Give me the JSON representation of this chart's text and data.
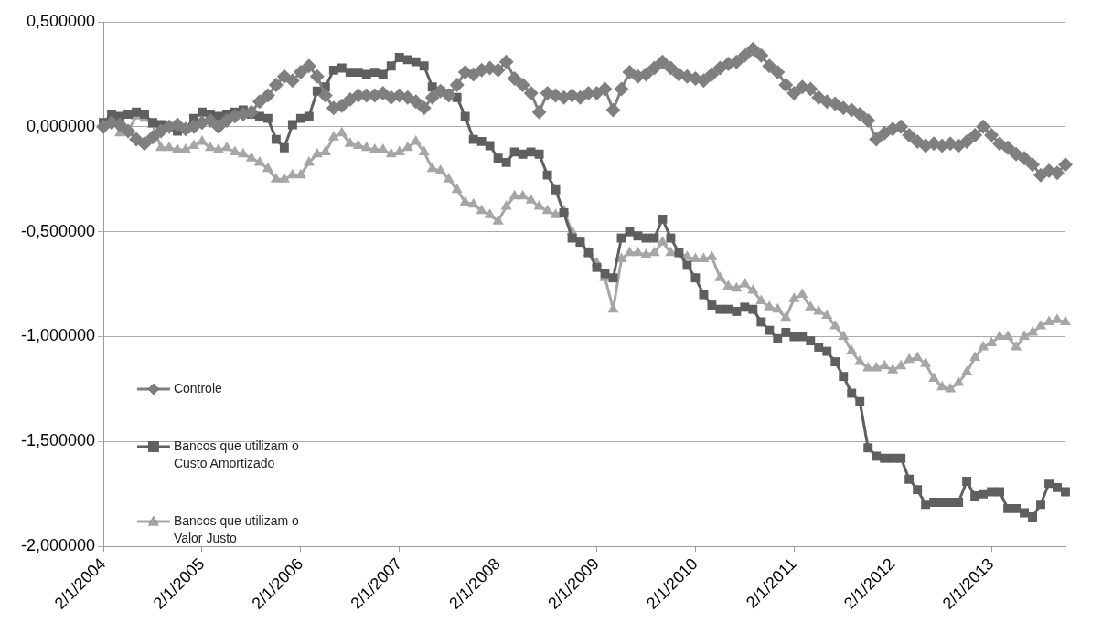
{
  "chart_data": {
    "type": "line",
    "categories": [
      "2/1/2004",
      null,
      null,
      null,
      null,
      null,
      null,
      null,
      null,
      null,
      null,
      null,
      "2/1/2005",
      null,
      null,
      null,
      null,
      null,
      null,
      null,
      null,
      null,
      null,
      null,
      "2/1/2006",
      null,
      null,
      null,
      null,
      null,
      null,
      null,
      null,
      null,
      null,
      null,
      "2/1/2007",
      null,
      null,
      null,
      null,
      null,
      null,
      null,
      null,
      null,
      null,
      null,
      "2/1/2008",
      null,
      null,
      null,
      null,
      null,
      null,
      null,
      null,
      null,
      null,
      null,
      "2/1/2009",
      null,
      null,
      null,
      null,
      null,
      null,
      null,
      null,
      null,
      null,
      null,
      "2/1/2010",
      null,
      null,
      null,
      null,
      null,
      null,
      null,
      null,
      null,
      null,
      null,
      "2/1/2011",
      null,
      null,
      null,
      null,
      null,
      null,
      null,
      null,
      null,
      null,
      null,
      "2/1/2012",
      null,
      null,
      null,
      null,
      null,
      null,
      null,
      null,
      null,
      null,
      null,
      "2/1/2013",
      null,
      null,
      null,
      null,
      null,
      null,
      null,
      null,
      null
    ],
    "series": [
      {
        "name": "Controle",
        "color": "#7f7f7f",
        "marker": "diamond",
        "values": [
          0,
          0.02,
          0.01,
          -0.02,
          -0.06,
          -0.08,
          -0.05,
          -0.02,
          0.0,
          0.01,
          -0.01,
          0.0,
          0.02,
          0.03,
          0.0,
          0.03,
          0.05,
          0.06,
          0.07,
          0.12,
          0.15,
          0.2,
          0.24,
          0.22,
          0.26,
          0.29,
          0.24,
          0.15,
          0.09,
          0.1,
          0.13,
          0.15,
          0.15,
          0.15,
          0.16,
          0.14,
          0.15,
          0.14,
          0.12,
          0.09,
          0.14,
          0.17,
          0.15,
          0.2,
          0.26,
          0.25,
          0.27,
          0.28,
          0.27,
          0.31,
          0.23,
          0.2,
          0.16,
          0.07,
          0.16,
          0.15,
          0.14,
          0.15,
          0.14,
          0.16,
          0.16,
          0.18,
          0.08,
          0.18,
          0.26,
          0.24,
          0.25,
          0.28,
          0.31,
          0.28,
          0.25,
          0.24,
          0.23,
          0.22,
          0.25,
          0.28,
          0.3,
          0.31,
          0.34,
          0.37,
          0.34,
          0.29,
          0.26,
          0.2,
          0.16,
          0.19,
          0.18,
          0.14,
          0.12,
          0.11,
          0.09,
          0.08,
          0.06,
          0.03,
          -0.06,
          -0.03,
          -0.01,
          0.0,
          -0.04,
          -0.07,
          -0.09,
          -0.08,
          -0.09,
          -0.08,
          -0.09,
          -0.07,
          -0.04,
          0.0,
          -0.04,
          -0.08,
          -0.1,
          -0.13,
          -0.15,
          -0.18,
          -0.23,
          -0.21,
          -0.22,
          -0.18
        ]
      },
      {
        "name": "Bancos que utilizam o Custo Amortizado",
        "color": "#5f5f5f",
        "marker": "square",
        "values": [
          0.02,
          0.06,
          0.05,
          0.06,
          0.07,
          0.06,
          0.02,
          0.01,
          0.0,
          -0.02,
          -0.01,
          0.04,
          0.07,
          0.06,
          0.05,
          0.06,
          0.07,
          0.08,
          0.06,
          0.05,
          0.04,
          -0.06,
          -0.1,
          0.01,
          0.04,
          0.05,
          0.17,
          0.19,
          0.27,
          0.28,
          0.26,
          0.26,
          0.25,
          0.26,
          0.25,
          0.29,
          0.33,
          0.32,
          0.31,
          0.29,
          0.19,
          0.17,
          0.16,
          0.14,
          0.05,
          -0.06,
          -0.07,
          -0.09,
          -0.15,
          -0.17,
          -0.12,
          -0.13,
          -0.12,
          -0.13,
          -0.23,
          -0.3,
          -0.41,
          -0.53,
          -0.55,
          -0.6,
          -0.67,
          -0.7,
          -0.72,
          -0.53,
          -0.5,
          -0.52,
          -0.53,
          -0.53,
          -0.44,
          -0.53,
          -0.6,
          -0.66,
          -0.72,
          -0.8,
          -0.85,
          -0.87,
          -0.87,
          -0.88,
          -0.86,
          -0.87,
          -0.93,
          -0.97,
          -1.01,
          -0.98,
          -1.0,
          -1.0,
          -1.02,
          -1.05,
          -1.07,
          -1.12,
          -1.19,
          -1.27,
          -1.31,
          -1.53,
          -1.57,
          -1.58,
          -1.58,
          -1.58,
          -1.68,
          -1.73,
          -1.8,
          -1.79,
          -1.79,
          -1.79,
          -1.79,
          -1.69,
          -1.76,
          -1.75,
          -1.74,
          -1.74,
          -1.82,
          -1.82,
          -1.84,
          -1.86,
          -1.8,
          -1.7,
          -1.72,
          -1.74
        ]
      },
      {
        "name": "Bancos que utilizam o Valor Justo",
        "color": "#a6a6a6",
        "marker": "triangle",
        "values": [
          0.01,
          0.05,
          -0.03,
          -0.02,
          0.05,
          0.04,
          0.01,
          -0.1,
          -0.1,
          -0.11,
          -0.11,
          -0.09,
          -0.07,
          -0.1,
          -0.11,
          -0.1,
          -0.12,
          -0.13,
          -0.15,
          -0.17,
          -0.2,
          -0.25,
          -0.25,
          -0.23,
          -0.23,
          -0.17,
          -0.13,
          -0.12,
          -0.05,
          -0.03,
          -0.08,
          -0.09,
          -0.1,
          -0.11,
          -0.11,
          -0.13,
          -0.12,
          -0.1,
          -0.07,
          -0.12,
          -0.2,
          -0.21,
          -0.25,
          -0.3,
          -0.36,
          -0.37,
          -0.4,
          -0.42,
          -0.45,
          -0.38,
          -0.33,
          -0.33,
          -0.35,
          -0.38,
          -0.4,
          -0.42,
          -0.4,
          -0.5,
          -0.55,
          -0.6,
          -0.65,
          -0.72,
          -0.87,
          -0.63,
          -0.6,
          -0.6,
          -0.61,
          -0.6,
          -0.55,
          -0.6,
          -0.6,
          -0.62,
          -0.63,
          -0.63,
          -0.62,
          -0.72,
          -0.76,
          -0.77,
          -0.75,
          -0.78,
          -0.83,
          -0.86,
          -0.87,
          -0.91,
          -0.82,
          -0.8,
          -0.86,
          -0.88,
          -0.9,
          -0.95,
          -1.0,
          -1.07,
          -1.12,
          -1.15,
          -1.15,
          -1.14,
          -1.16,
          -1.14,
          -1.11,
          -1.1,
          -1.13,
          -1.2,
          -1.24,
          -1.25,
          -1.22,
          -1.17,
          -1.1,
          -1.05,
          -1.03,
          -1.0,
          -1.0,
          -1.05,
          -1.0,
          -0.98,
          -0.95,
          -0.93,
          -0.92,
          -0.93
        ]
      }
    ],
    "ylim": [
      -2,
      0.5
    ],
    "yticks": [
      {
        "value": -2,
        "label": "-2,000000"
      },
      {
        "value": -1.5,
        "label": "-1,500000"
      },
      {
        "value": -1,
        "label": "-1,000000"
      },
      {
        "value": -0.5,
        "label": "-0,500000"
      },
      {
        "value": 0,
        "label": "0,000000"
      },
      {
        "value": 0.5,
        "label": "0,500000"
      }
    ],
    "grid": "y",
    "legend": "left",
    "line_style": "solid"
  }
}
